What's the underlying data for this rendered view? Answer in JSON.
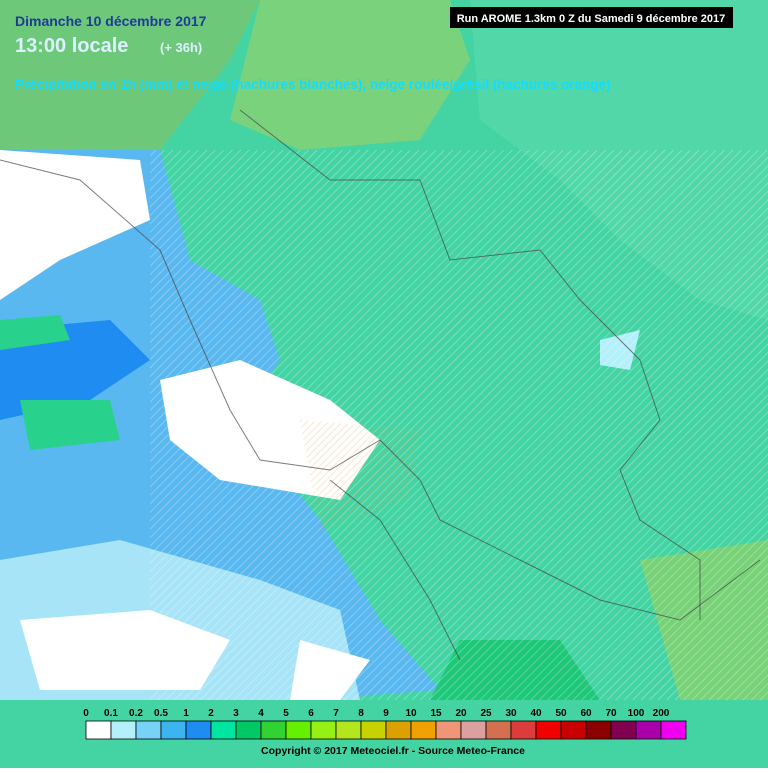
{
  "header": {
    "date": "Dimanche 10 décembre 2017",
    "time": "13:00 locale",
    "lead": "(+ 36h)",
    "run": "Run AROME 1.3km 0 Z du Samedi 9 décembre 2017",
    "description": "Précipitation en 1h (mm) et neige (hachures blanches), neige roulée/grésil (hachures orange)"
  },
  "legend": {
    "labels": [
      0,
      0.1,
      0.2,
      0.5,
      1,
      2,
      3,
      4,
      5,
      6,
      7,
      8,
      9,
      10,
      15,
      20,
      25,
      30,
      40,
      50,
      60,
      70,
      100,
      200
    ],
    "colors": [
      "#ffffff",
      "#b4f0fa",
      "#78d2f5",
      "#3cb4f0",
      "#1e8cf0",
      "#00e6a0",
      "#00c864",
      "#32d232",
      "#64f000",
      "#96f014",
      "#b4e61e",
      "#c8d200",
      "#dca000",
      "#f0a000",
      "#f09678",
      "#dca0a0",
      "#d27050",
      "#dc3c3c",
      "#f00000",
      "#c80000",
      "#8c0000",
      "#820050",
      "#aa00aa",
      "#f000f0"
    ]
  },
  "footer": {
    "copyright": "Copyright © 2017 Meteociel.fr - Source Meteo-France"
  }
}
